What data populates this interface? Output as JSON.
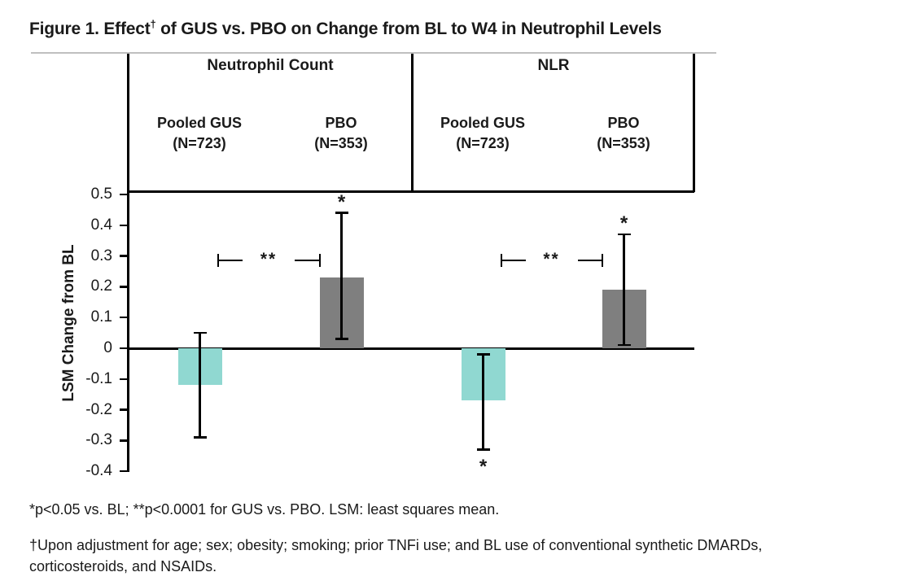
{
  "figure": {
    "title": {
      "text_before_sup": "Figure 1. Effect",
      "sup": "†",
      "text_after_sup": " of GUS vs. PBO on Change from BL to W4 in Neutrophil Levels"
    }
  },
  "y_axis": {
    "label": "LSM Change from BL",
    "tick_labels": [
      "0.5",
      "0.4",
      "0.3",
      "0.2",
      "0.1",
      "0",
      "-0.1",
      "-0.2",
      "-0.3",
      "-0.4"
    ]
  },
  "chart_data": {
    "type": "bar",
    "title": "Effect of GUS vs. PBO on Change from BL to W4 in Neutrophil Levels",
    "xlabel": "",
    "ylabel": "LSM Change from BL",
    "ylim": [
      -0.4,
      0.5
    ],
    "grid": false,
    "star_symbol": "*",
    "panels": [
      {
        "title": "Neutrophil Count",
        "bars": [
          {
            "group": "Pooled GUS",
            "n": "(N=723)",
            "value": -0.12,
            "ci_low": -0.29,
            "ci_high": 0.05,
            "color_key": "gus",
            "star": null
          },
          {
            "group": "PBO",
            "n": "(N=353)",
            "value": 0.23,
            "ci_low": 0.03,
            "ci_high": 0.44,
            "color_key": "pbo",
            "star": "above"
          }
        ],
        "comparison": {
          "label": "**",
          "y_value": 0.287
        }
      },
      {
        "title": "NLR",
        "bars": [
          {
            "group": "Pooled GUS",
            "n": "(N=723)",
            "value": -0.17,
            "ci_low": -0.33,
            "ci_high": -0.02,
            "color_key": "gus",
            "star": "below"
          },
          {
            "group": "PBO",
            "n": "(N=353)",
            "value": 0.19,
            "ci_low": 0.01,
            "ci_high": 0.37,
            "color_key": "pbo",
            "star": "above"
          }
        ],
        "comparison": {
          "label": "**",
          "y_value": 0.287
        }
      }
    ]
  },
  "colors": {
    "gus_bar": "#90d8d1",
    "pbo_bar": "#7f7f7f",
    "axis": "#000000",
    "top_rule": "#bfbfbf"
  },
  "footnotes": {
    "line1": "*p<0.05 vs. BL; **p<0.0001 for GUS vs. PBO. LSM: least squares mean.",
    "line2a": "†Upon adjustment for age; sex; obesity; smoking; prior TNFi use; and BL use of conventional synthetic DMARDs,",
    "line2b": "corticosteroids, and NSAIDs."
  }
}
